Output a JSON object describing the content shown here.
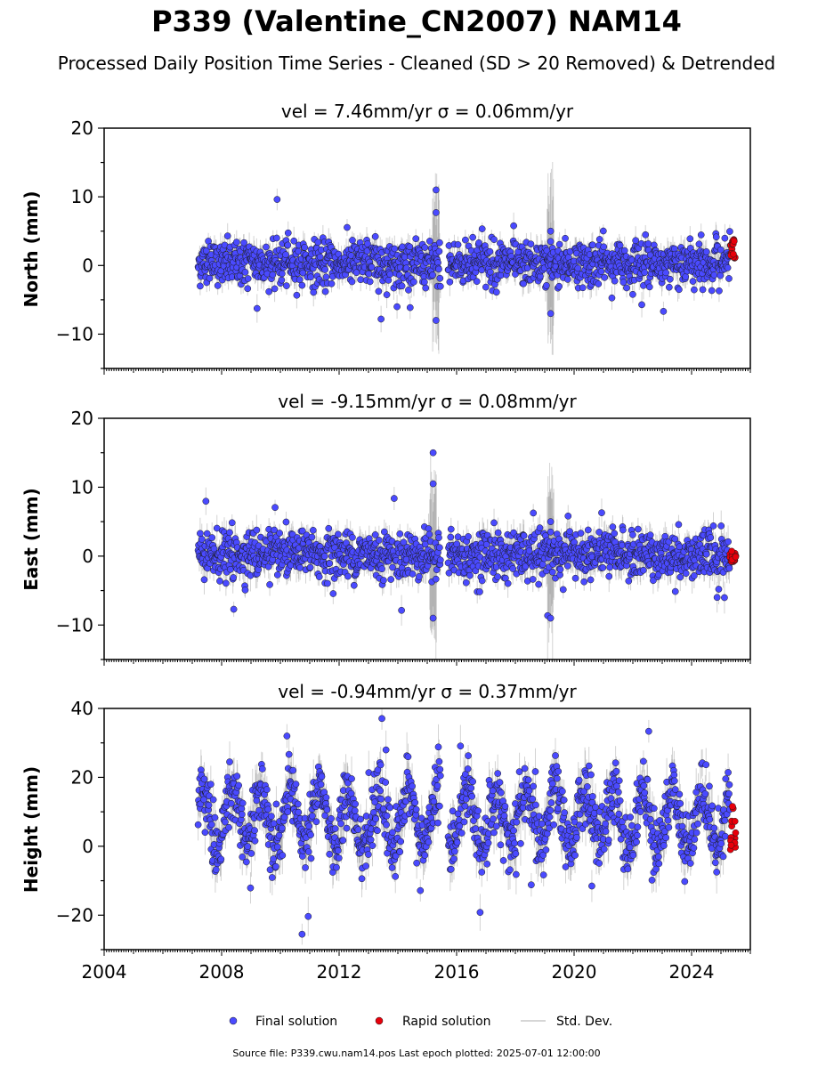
{
  "figure": {
    "title": "P339 (Valentine_CN2007) NAM14",
    "subtitle": "Processed Daily Position Time Series - Cleaned (SD > 20 Removed) & Detrended",
    "footer": "Source file: P339.cwu.nam14.pos  Last epoch plotted: 2025-07-01 12:00:00"
  },
  "legend": {
    "final": "Final solution",
    "rapid": "Rapid solution",
    "std": "Std. Dev."
  },
  "colors": {
    "final": "#4a4aff",
    "rapid": "#e8000b",
    "errorbar": "#808080",
    "marker_edge": "#1a1a1a"
  },
  "chart_data": [
    {
      "type": "scatter",
      "title": "vel = 7.46mm/yr   σ = 0.06mm/yr",
      "ylabel": "North (mm)",
      "xlim": [
        2004,
        2026
      ],
      "ylim": [
        -15,
        20
      ],
      "yticks": [
        -10,
        0,
        10,
        20
      ],
      "xticks": [
        2004,
        2008,
        2012,
        2016,
        2020,
        2024
      ],
      "data_span": [
        2007.2,
        2025.5
      ],
      "series": [
        {
          "name": "Final solution",
          "x_range": [
            2007.2,
            2025.3
          ],
          "y_center": 0.3,
          "y_typical_spread": 1.6,
          "y_extremes": [
            -8,
            11
          ],
          "std_dev_typical": 1.5
        },
        {
          "name": "Rapid solution",
          "x_range": [
            2025.3,
            2025.5
          ],
          "y_range": [
            1,
            4
          ]
        }
      ],
      "features": [
        {
          "label": "",
          "x": 2015.3,
          "y_range": [
            -8,
            11
          ]
        },
        {
          "label": "",
          "x": 2019.2,
          "y_range": [
            -7,
            5
          ]
        }
      ]
    },
    {
      "type": "scatter",
      "title": "vel = -9.15mm/yr   σ = 0.08mm/yr",
      "ylabel": "East (mm)",
      "xlim": [
        2004,
        2026
      ],
      "ylim": [
        -15,
        20
      ],
      "yticks": [
        -10,
        0,
        10,
        20
      ],
      "xticks": [
        2004,
        2008,
        2012,
        2016,
        2020,
        2024
      ],
      "data_span": [
        2007.2,
        2025.5
      ],
      "series": [
        {
          "name": "Final solution",
          "x_range": [
            2007.2,
            2025.3
          ],
          "y_center": 0.2,
          "y_typical_spread": 1.7,
          "y_extremes": [
            -10,
            15
          ],
          "std_dev_typical": 1.7
        },
        {
          "name": "Rapid solution",
          "x_range": [
            2025.3,
            2025.5
          ],
          "y_range": [
            -0.8,
            0.8
          ]
        }
      ],
      "features": [
        {
          "label": "",
          "x": 2015.2,
          "y_range": [
            -9,
            15
          ]
        },
        {
          "label": "",
          "x": 2019.2,
          "y_range": [
            -9,
            5
          ]
        }
      ]
    },
    {
      "type": "scatter",
      "title": "vel = -0.94mm/yr   σ = 0.37mm/yr",
      "ylabel": "Height (mm)",
      "xlim": [
        2004,
        2026
      ],
      "ylim": [
        -30,
        40
      ],
      "yticks": [
        -20,
        0,
        20,
        40
      ],
      "xticks": [
        2004,
        2008,
        2012,
        2016,
        2020,
        2024
      ],
      "xticklabels": [
        "2004",
        "2008",
        "2012",
        "2016",
        "2020",
        "2024"
      ],
      "data_span": [
        2007.2,
        2025.5
      ],
      "series": [
        {
          "name": "Final solution",
          "x_range": [
            2007.2,
            2025.3
          ],
          "y_center": 8,
          "seasonal_amplitude": 8,
          "y_typical_spread": 4.5,
          "y_extremes": [
            -26,
            39
          ],
          "std_dev_typical": 5
        },
        {
          "name": "Rapid solution",
          "x_range": [
            2025.3,
            2025.5
          ],
          "y_range": [
            -1,
            12
          ]
        }
      ]
    }
  ]
}
